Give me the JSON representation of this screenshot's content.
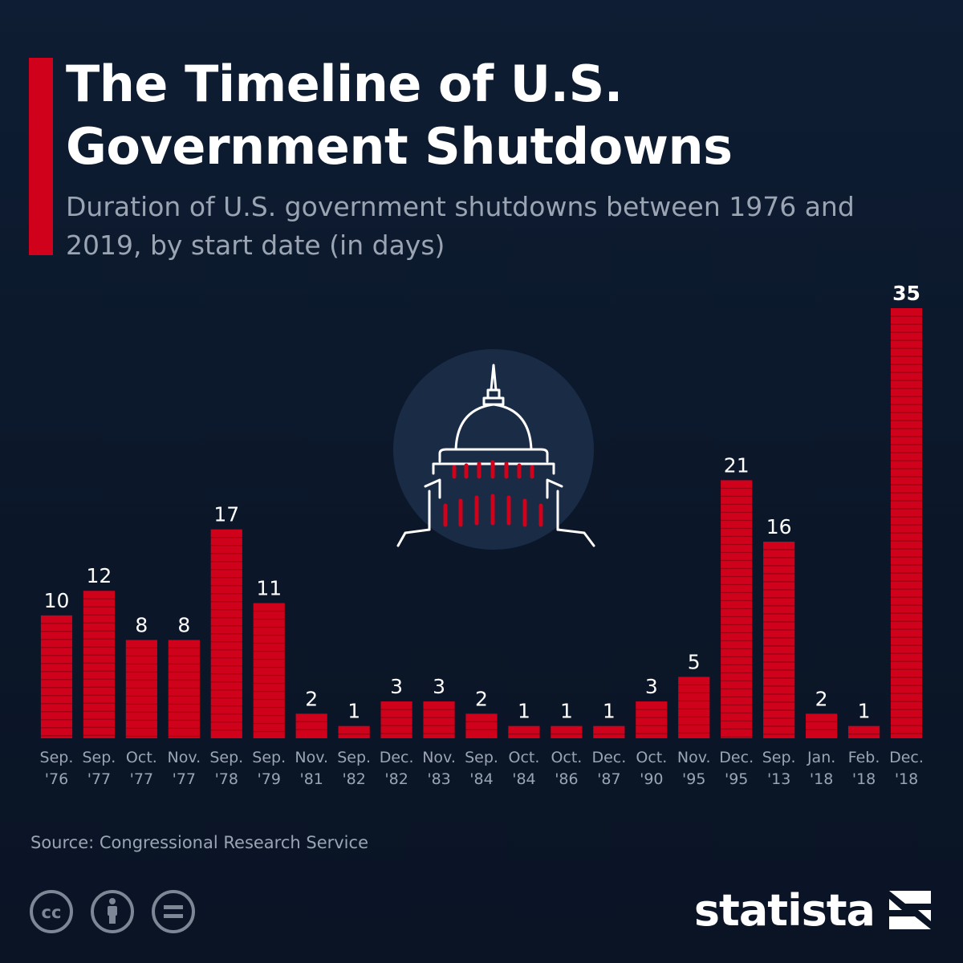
{
  "header": {
    "title": "The Timeline of U.S. Government Shutdowns",
    "subtitle": "Duration of U.S. government shutdowns between 1976 and 2019, by start date (in days)"
  },
  "footer": {
    "source": "Source: Congressional Research Service",
    "brand": "statista",
    "license_icons": [
      "creative-commons-icon",
      "attribution-icon",
      "no-derivatives-icon"
    ]
  },
  "colors": {
    "background": "#0c1a2e",
    "bar": "#d0021b",
    "bar_stripe": "#9e0014",
    "text": "#ffffff",
    "muted": "#9aa4b2",
    "illustration_circle": "#1a2b45"
  },
  "illustration": {
    "icon": "capitol-dome-icon"
  },
  "chart_data": {
    "type": "bar",
    "title": "The Timeline of U.S. Government Shutdowns",
    "subtitle": "Duration of U.S. government shutdowns between 1976 and 2019, by start date (in days)",
    "xlabel": "",
    "ylabel": "",
    "ylim": [
      0,
      35
    ],
    "grid": false,
    "legend": "none",
    "categories": [
      [
        "Sep.",
        "'76"
      ],
      [
        "Sep.",
        "'77"
      ],
      [
        "Oct.",
        "'77"
      ],
      [
        "Nov.",
        "'77"
      ],
      [
        "Sep.",
        "'78"
      ],
      [
        "Sep.",
        "'79"
      ],
      [
        "Nov.",
        "'81"
      ],
      [
        "Sep.",
        "'82"
      ],
      [
        "Dec.",
        "'82"
      ],
      [
        "Nov.",
        "'83"
      ],
      [
        "Sep.",
        "'84"
      ],
      [
        "Oct.",
        "'84"
      ],
      [
        "Oct.",
        "'86"
      ],
      [
        "Dec.",
        "'87"
      ],
      [
        "Oct.",
        "'90"
      ],
      [
        "Nov.",
        "'95"
      ],
      [
        "Dec.",
        "'95"
      ],
      [
        "Sep.",
        "'13"
      ],
      [
        "Jan.",
        "'18"
      ],
      [
        "Feb.",
        "'18"
      ],
      [
        "Dec.",
        "'18"
      ]
    ],
    "values": [
      10,
      12,
      8,
      8,
      17,
      11,
      2,
      1,
      3,
      3,
      2,
      1,
      1,
      1,
      3,
      5,
      21,
      16,
      2,
      1,
      35
    ],
    "highlighted": [
      20
    ]
  }
}
